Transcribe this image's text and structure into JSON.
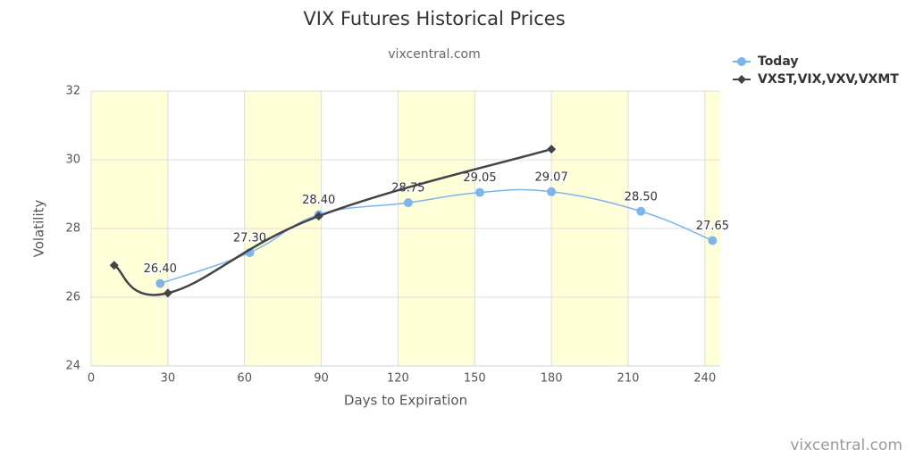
{
  "chart_data": {
    "type": "line",
    "title": "VIX Futures Historical Prices",
    "subtitle": "vixcentral.com",
    "credit": "vixcentral.com",
    "x_label": "Days to Expiration",
    "y_label": "Volatility",
    "xlim": [
      0,
      246
    ],
    "xticks": [
      0,
      30,
      60,
      90,
      120,
      150,
      180,
      210,
      240
    ],
    "ylim": [
      24,
      32
    ],
    "yticks": [
      24,
      26,
      28,
      30,
      32
    ],
    "grid": true,
    "legend": "top-right",
    "series": [
      {
        "name": "Today",
        "color": "#7cb5ec",
        "marker": "circle",
        "x": [
          27,
          62,
          89,
          124,
          152,
          180,
          215,
          243
        ],
        "values": [
          26.4,
          27.3,
          28.4,
          28.75,
          29.05,
          29.07,
          28.5,
          27.65
        ],
        "value_labels": [
          "26.40",
          "27.30",
          "28.40",
          "28.75",
          "29.05",
          "29.07",
          "28.50",
          "27.65"
        ]
      },
      {
        "name": "VXST,VIX,VXV,VXMT",
        "color": "#434348",
        "marker": "diamond",
        "x": [
          9,
          30,
          89,
          180
        ],
        "values": [
          26.93,
          26.12,
          28.36,
          30.31
        ]
      }
    ]
  }
}
